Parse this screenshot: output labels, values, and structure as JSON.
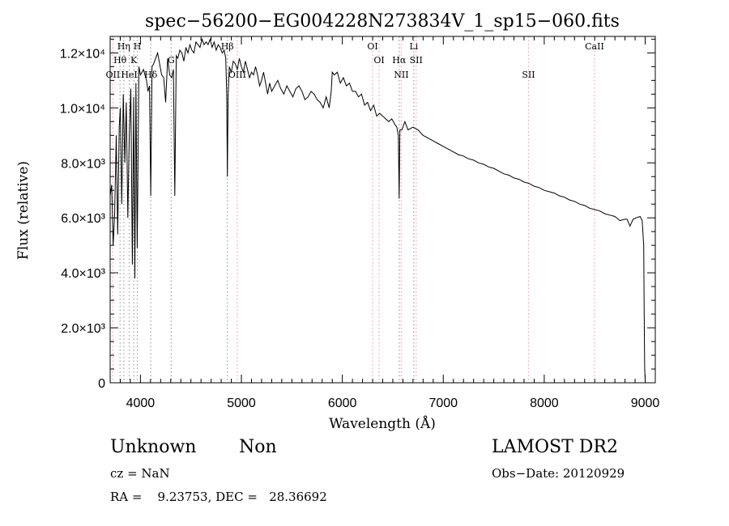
{
  "chart_data": {
    "type": "line",
    "title": "spec−56200−EG004228N273834V_1_sp15−060.fits",
    "xlabel": "Wavelength (Å)",
    "ylabel": "Flux (relative)",
    "xlim": [
      3700,
      9100
    ],
    "ylim": [
      0,
      12600
    ],
    "x_ticks": [
      {
        "value": 4000,
        "label": "4000"
      },
      {
        "value": 5000,
        "label": "5000"
      },
      {
        "value": 6000,
        "label": "6000"
      },
      {
        "value": 7000,
        "label": "7000"
      },
      {
        "value": 8000,
        "label": "8000"
      },
      {
        "value": 9000,
        "label": "9000"
      }
    ],
    "y_ticks": [
      {
        "value": 0,
        "label": "0"
      },
      {
        "value": 2000,
        "label": "2.0×10³"
      },
      {
        "value": 4000,
        "label": "4.0×10³"
      },
      {
        "value": 6000,
        "label": "6.0×10³"
      },
      {
        "value": 8000,
        "label": "8.0×10³"
      },
      {
        "value": 10000,
        "label": "1.0×10⁴"
      },
      {
        "value": 12000,
        "label": "1.2×10⁴"
      }
    ],
    "series": [
      {
        "x": [
          3700,
          3715,
          3730,
          3745,
          3760,
          3775,
          3790,
          3800,
          3815,
          3830,
          3845,
          3860,
          3875,
          3889,
          3905,
          3920,
          3933,
          3945,
          3955,
          3968,
          3985,
          4000,
          4015,
          4030,
          4045,
          4060,
          4075,
          4090,
          4102,
          4115,
          4130,
          4150,
          4170,
          4190,
          4210,
          4230,
          4250,
          4270,
          4290,
          4310,
          4327,
          4340,
          4355,
          4370,
          4390,
          4410,
          4430,
          4450,
          4470,
          4490,
          4510,
          4530,
          4550,
          4570,
          4590,
          4610,
          4630,
          4650,
          4670,
          4690,
          4710,
          4730,
          4750,
          4770,
          4790,
          4810,
          4830,
          4845,
          4855,
          4861,
          4868,
          4880,
          4900,
          4920,
          4940,
          4960,
          4980,
          5000,
          5020,
          5040,
          5060,
          5080,
          5100,
          5120,
          5140,
          5160,
          5180,
          5200,
          5220,
          5240,
          5260,
          5280,
          5300,
          5330,
          5360,
          5390,
          5420,
          5450,
          5480,
          5510,
          5540,
          5570,
          5600,
          5630,
          5660,
          5690,
          5720,
          5750,
          5780,
          5810,
          5840,
          5870,
          5890,
          5900,
          5920,
          5950,
          5980,
          6010,
          6040,
          6070,
          6100,
          6130,
          6160,
          6190,
          6220,
          6250,
          6280,
          6310,
          6340,
          6370,
          6400,
          6430,
          6460,
          6490,
          6520,
          6540,
          6555,
          6563,
          6570,
          6590,
          6620,
          6650,
          6700,
          6750,
          6800,
          6850,
          6900,
          6950,
          7000,
          7050,
          7100,
          7150,
          7200,
          7250,
          7300,
          7350,
          7400,
          7450,
          7500,
          7550,
          7600,
          7650,
          7700,
          7750,
          7800,
          7850,
          7900,
          7950,
          8000,
          8050,
          8100,
          8150,
          8200,
          8250,
          8300,
          8350,
          8400,
          8450,
          8500,
          8550,
          8600,
          8650,
          8700,
          8750,
          8800,
          8820,
          8850,
          8880,
          8910,
          8950,
          8970,
          8985,
          8990,
          8995,
          9000
        ],
        "y": [
          6800,
          7200,
          5000,
          6200,
          9000,
          5400,
          9300,
          10000,
          6500,
          10500,
          8000,
          10200,
          6000,
          9000,
          10700,
          4300,
          10400,
          3800,
          10900,
          4900,
          11500,
          11200,
          11300,
          11400,
          11200,
          11000,
          10600,
          10800,
          6800,
          11500,
          11600,
          11800,
          12000,
          11600,
          11200,
          11100,
          10200,
          11800,
          11200,
          11100,
          11400,
          6800,
          11900,
          11800,
          12100,
          12000,
          11700,
          12200,
          12000,
          12300,
          12100,
          12000,
          12400,
          12300,
          12200,
          12500,
          12300,
          12400,
          12300,
          12500,
          12200,
          12400,
          12100,
          12300,
          12200,
          12000,
          12100,
          11800,
          10500,
          7500,
          10400,
          11500,
          11300,
          11700,
          11600,
          11400,
          11800,
          11500,
          11300,
          11700,
          11400,
          11100,
          11300,
          11200,
          11500,
          11200,
          10800,
          11000,
          11300,
          10900,
          10500,
          10900,
          10600,
          10800,
          11000,
          10700,
          10500,
          10800,
          10600,
          10400,
          10700,
          10800,
          10600,
          10300,
          10400,
          10600,
          10500,
          10300,
          10200,
          10000,
          10400,
          10000,
          10600,
          11300,
          11200,
          11300,
          10900,
          11100,
          10800,
          10900,
          10600,
          10600,
          10400,
          10500,
          10100,
          10200,
          9900,
          10100,
          9700,
          9800,
          9700,
          9600,
          9500,
          9600,
          9400,
          9300,
          9000,
          6700,
          9200,
          9200,
          9500,
          9200,
          9300,
          9200,
          9000,
          8900,
          8800,
          8700,
          8600,
          8500,
          8400,
          8300,
          8250,
          8150,
          8100,
          8000,
          7950,
          7850,
          7800,
          7700,
          7600,
          7550,
          7450,
          7400,
          7300,
          7250,
          7150,
          7100,
          7000,
          6950,
          6900,
          6800,
          6750,
          6650,
          6600,
          6500,
          6450,
          6350,
          6300,
          6250,
          6150,
          6100,
          6050,
          5900,
          5950,
          5950,
          5700,
          5950,
          6000,
          6050,
          5900,
          5000,
          2500,
          500,
          100
        ]
      }
    ],
    "lines": [
      {
        "label": "OII",
        "x": 3727,
        "color": "#f5a3a3",
        "dotted": true,
        "row": 3
      },
      {
        "label": "Hη",
        "x": 3835,
        "color": "#a0a0a0",
        "dotted": true,
        "row": 1
      },
      {
        "label": "Hθ",
        "x": 3798,
        "color": "#a0a0a0",
        "dotted": true,
        "row": 2
      },
      {
        "label": "HeI",
        "x": 3889,
        "color": "#a0a0a0",
        "dotted": true,
        "row": 3
      },
      {
        "label": "K",
        "x": 3934,
        "color": "#a0a0a0",
        "dotted": true,
        "row": 2
      },
      {
        "label": "H",
        "x": 3969,
        "color": "#a0a0a0",
        "dotted": true,
        "row": 1
      },
      {
        "label": "Hδ",
        "x": 4102,
        "color": "#a0a0a0",
        "dotted": true,
        "row": 3
      },
      {
        "label": "G",
        "x": 4305,
        "color": "#a0a0a0",
        "dotted": true,
        "row": 2
      },
      {
        "label": "Hβ",
        "x": 4861,
        "color": "#a0a0a0",
        "dotted": true,
        "row": 1
      },
      {
        "label": "OIII",
        "x": 4959,
        "color": "#f5a3a3",
        "dotted": true,
        "row": 3
      },
      {
        "label": "OI",
        "x": 6300,
        "color": "#f5a3a3",
        "dotted": true,
        "row": 1
      },
      {
        "label": "OI",
        "x": 6364,
        "color": "#f5a3a3",
        "dotted": true,
        "row": 2
      },
      {
        "label": "Hα",
        "x": 6563,
        "color": "#a0a0a0",
        "dotted": true,
        "row": 2
      },
      {
        "label": "NII",
        "x": 6584,
        "color": "#f5a3a3",
        "dotted": true,
        "row": 3
      },
      {
        "label": "Li",
        "x": 6708,
        "color": "#a0a0a0",
        "dotted": true,
        "row": 1
      },
      {
        "label": "SII",
        "x": 6731,
        "color": "#f5a3a3",
        "dotted": true,
        "row": 2
      },
      {
        "label": "SII",
        "x": 7844,
        "color": "#f5a3a3",
        "dotted": true,
        "row": 3
      },
      {
        "label": "CaII",
        "x": 8498,
        "color": "#f5a3a3",
        "dotted": true,
        "row": 1
      }
    ],
    "legend": "none",
    "grid": false
  },
  "info": {
    "class": "Unknown",
    "subclass": "Non",
    "survey": "LAMOST DR2",
    "cz": "cz = NaN",
    "obs_date": "Obs−Date: 20120929",
    "coords": "RA =    9.23753, DEC =   28.36692"
  }
}
